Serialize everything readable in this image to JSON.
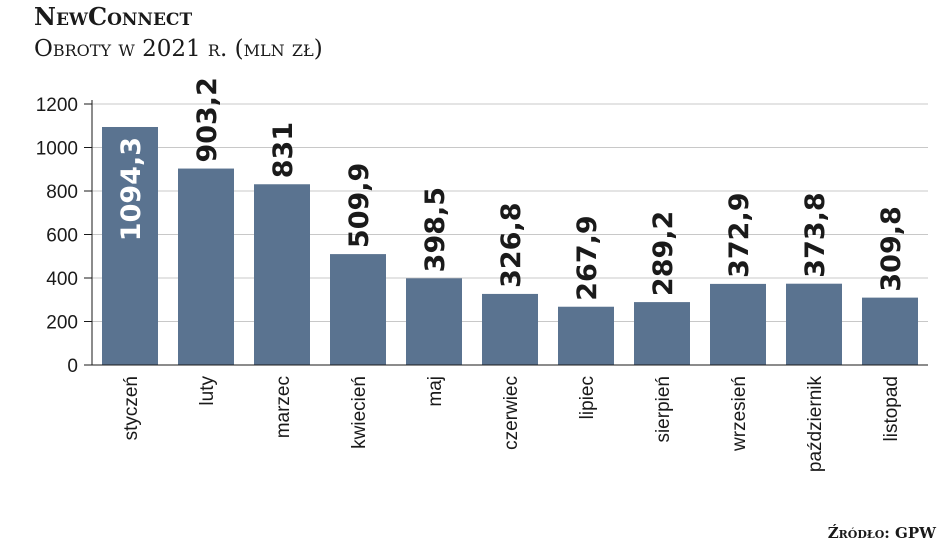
{
  "header": {
    "title": "NewConnect",
    "subtitle": "Obroty w 2021 r. (mln zł)"
  },
  "footer": {
    "source": "Źródło: GPW"
  },
  "colors": {
    "bar": "#5a7390",
    "grid": "#c8c8c8",
    "label_inside": "#ffffff",
    "label_outside": "#1a1a1a"
  },
  "chart_data": {
    "type": "bar",
    "categories": [
      "styczeń",
      "luty",
      "marzec",
      "kwiecień",
      "maj",
      "czerwiec",
      "lipiec",
      "sierpień",
      "wrzesień",
      "październik",
      "listopad"
    ],
    "values": [
      1094.3,
      903.2,
      831,
      509.9,
      398.5,
      326.8,
      267.9,
      289.2,
      372.9,
      373.8,
      309.8
    ],
    "value_labels": [
      "1094,3",
      "903,2",
      "831",
      "509,9",
      "398,5",
      "326,8",
      "267,9",
      "289,2",
      "372,9",
      "373,8",
      "309,8"
    ],
    "yticks": [
      "0",
      "200",
      "400",
      "600",
      "800",
      "1000",
      "1200"
    ],
    "ylim": [
      0,
      1200
    ],
    "grid": true,
    "legend": "none"
  }
}
